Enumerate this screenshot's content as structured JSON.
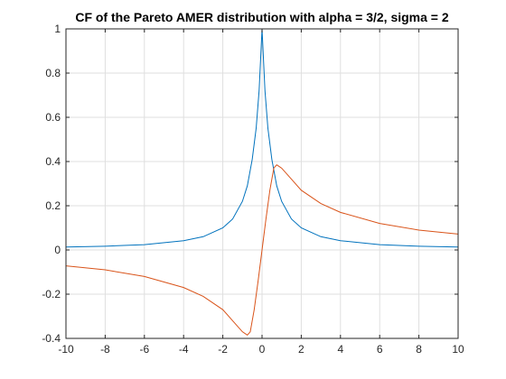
{
  "chart_data": {
    "type": "line",
    "title": "CF of the Pareto AMER distribution with alpha = 3/2, sigma = 2",
    "xlabel": "",
    "ylabel": "",
    "xlim": [
      -10,
      10
    ],
    "ylim": [
      -0.4,
      1
    ],
    "grid": true,
    "x_ticks": [
      -10,
      -8,
      -6,
      -4,
      -2,
      0,
      2,
      4,
      6,
      8,
      10
    ],
    "x_tick_labels": [
      "-10",
      "-8",
      "-6",
      "-4",
      "-2",
      "0",
      "2",
      "4",
      "6",
      "8",
      "10"
    ],
    "y_ticks": [
      -0.4,
      -0.2,
      0,
      0.2,
      0.4,
      0.6,
      0.8,
      1
    ],
    "y_tick_labels": [
      "-0.4",
      "-0.2",
      "0",
      "0.2",
      "0.4",
      "0.6",
      "0.8",
      "1"
    ],
    "series": [
      {
        "color": "#0072bd",
        "x": [
          -10,
          -8,
          -6,
          -4,
          -3,
          -2,
          -1.5,
          -1,
          -0.75,
          -0.5,
          -0.3,
          -0.15,
          0,
          0.15,
          0.3,
          0.5,
          0.75,
          1,
          1.5,
          2,
          3,
          4,
          6,
          8,
          10
        ],
        "values": [
          0.013,
          0.017,
          0.024,
          0.042,
          0.06,
          0.1,
          0.14,
          0.22,
          0.29,
          0.41,
          0.55,
          0.72,
          1,
          0.72,
          0.55,
          0.41,
          0.29,
          0.22,
          0.14,
          0.1,
          0.06,
          0.042,
          0.024,
          0.017,
          0.013
        ]
      },
      {
        "color": "#d95319",
        "x": [
          -10,
          -8,
          -6,
          -4,
          -3,
          -2,
          -1.5,
          -1,
          -0.75,
          -0.6,
          -0.4,
          -0.2,
          0,
          0.2,
          0.4,
          0.6,
          0.75,
          1,
          1.5,
          2,
          3,
          4,
          6,
          8,
          10
        ],
        "values": [
          -0.072,
          -0.09,
          -0.12,
          -0.17,
          -0.21,
          -0.27,
          -0.32,
          -0.37,
          -0.385,
          -0.37,
          -0.27,
          -0.14,
          0,
          0.14,
          0.27,
          0.37,
          0.385,
          0.37,
          0.32,
          0.27,
          0.21,
          0.17,
          0.12,
          0.09,
          0.072
        ]
      }
    ]
  }
}
